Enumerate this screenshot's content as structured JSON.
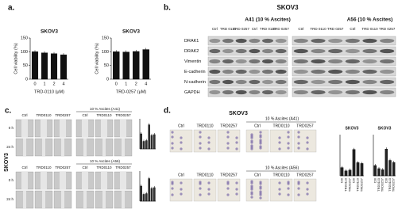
{
  "chart_data": [
    {
      "type": "bar",
      "title": "SKOV3",
      "ylabel": "Cell viability (%)",
      "xlabel": "TRD-0110 (μM)",
      "categories": [
        "0",
        "1",
        "2",
        "4"
      ],
      "values": [
        100,
        96,
        93,
        89
      ],
      "ylim": [
        0,
        150
      ],
      "yticks": [
        0,
        50,
        100,
        150
      ],
      "color": "#111111"
    },
    {
      "type": "bar",
      "title": "SKOV3",
      "ylabel": "Cell viability (%)",
      "xlabel": "TRD-0257 (μM)",
      "categories": [
        "0",
        "1",
        "2",
        "4"
      ],
      "values": [
        100,
        99,
        101,
        108
      ],
      "ylim": [
        0,
        150
      ],
      "yticks": [
        0,
        50,
        100,
        150
      ],
      "color": "#111111"
    },
    {
      "type": "bar",
      "categories": [
        null,
        null,
        null,
        null,
        null,
        null
      ],
      "values": [
        1.0,
        0.5,
        0.55,
        1.6,
        0.9,
        0.95
      ],
      "ylim": [
        0,
        2
      ],
      "color": "#333333"
    },
    {
      "type": "bar",
      "categories": [
        null,
        null,
        null,
        null,
        null,
        null
      ],
      "values": [
        1.0,
        0.45,
        0.5,
        1.5,
        0.85,
        0.9
      ],
      "ylim": [
        0,
        2
      ],
      "color": "#333333"
    },
    {
      "type": "bar",
      "title": "SKOV3",
      "categories": [
        "Ctrl",
        "TRD0110",
        "TRD0257",
        "Ctrl",
        "TRD0110",
        "TRD0257"
      ],
      "values": [
        1,
        0.6,
        0.7,
        3.2,
        1.6,
        1.5
      ],
      "ylim": [
        0,
        5
      ],
      "color": "#222222"
    },
    {
      "type": "bar",
      "title": "SKOV3",
      "categories": [
        "Ctrl",
        "TRD0110",
        "TRD0257",
        "Ctrl",
        "TRD0110",
        "TRD0257"
      ],
      "values": [
        1,
        0.7,
        0.6,
        2.6,
        1.5,
        1.3
      ],
      "ylim": [
        0,
        4
      ],
      "color": "#222222"
    }
  ],
  "panel_a": {
    "label": "a."
  },
  "blot": {
    "label": "b.",
    "title": "SKOV3",
    "groups": [
      "A41 (10 % Ascites)",
      "A56 (10 % Ascites)"
    ],
    "lanes": [
      "Ctrl",
      "TRD 0110",
      "TRD 0257",
      "Ctrl",
      "TRD 0110",
      "TRD 0257"
    ],
    "proteins": [
      "DRAK1",
      "DRAK2",
      "Vimentin",
      "E-cadherin",
      "N-cadherin",
      "GAPDH"
    ]
  },
  "migration": {
    "label": "c.",
    "cell_line": "SKOV3",
    "columns": [
      "Ctrl",
      "TRD0110",
      "TRD0257"
    ],
    "conditions": [
      "10 % Ascites (A41)",
      "10 % Ascites (A56)"
    ],
    "times": [
      "0 h",
      "24 h"
    ]
  },
  "invasion": {
    "label": "d.",
    "title": "SKOV3",
    "columns": [
      "Ctrl",
      "TRD0110",
      "TRD0257"
    ],
    "conditions": [
      "10 % Ascites (A41)",
      "10 % Ascites (A56)"
    ]
  }
}
